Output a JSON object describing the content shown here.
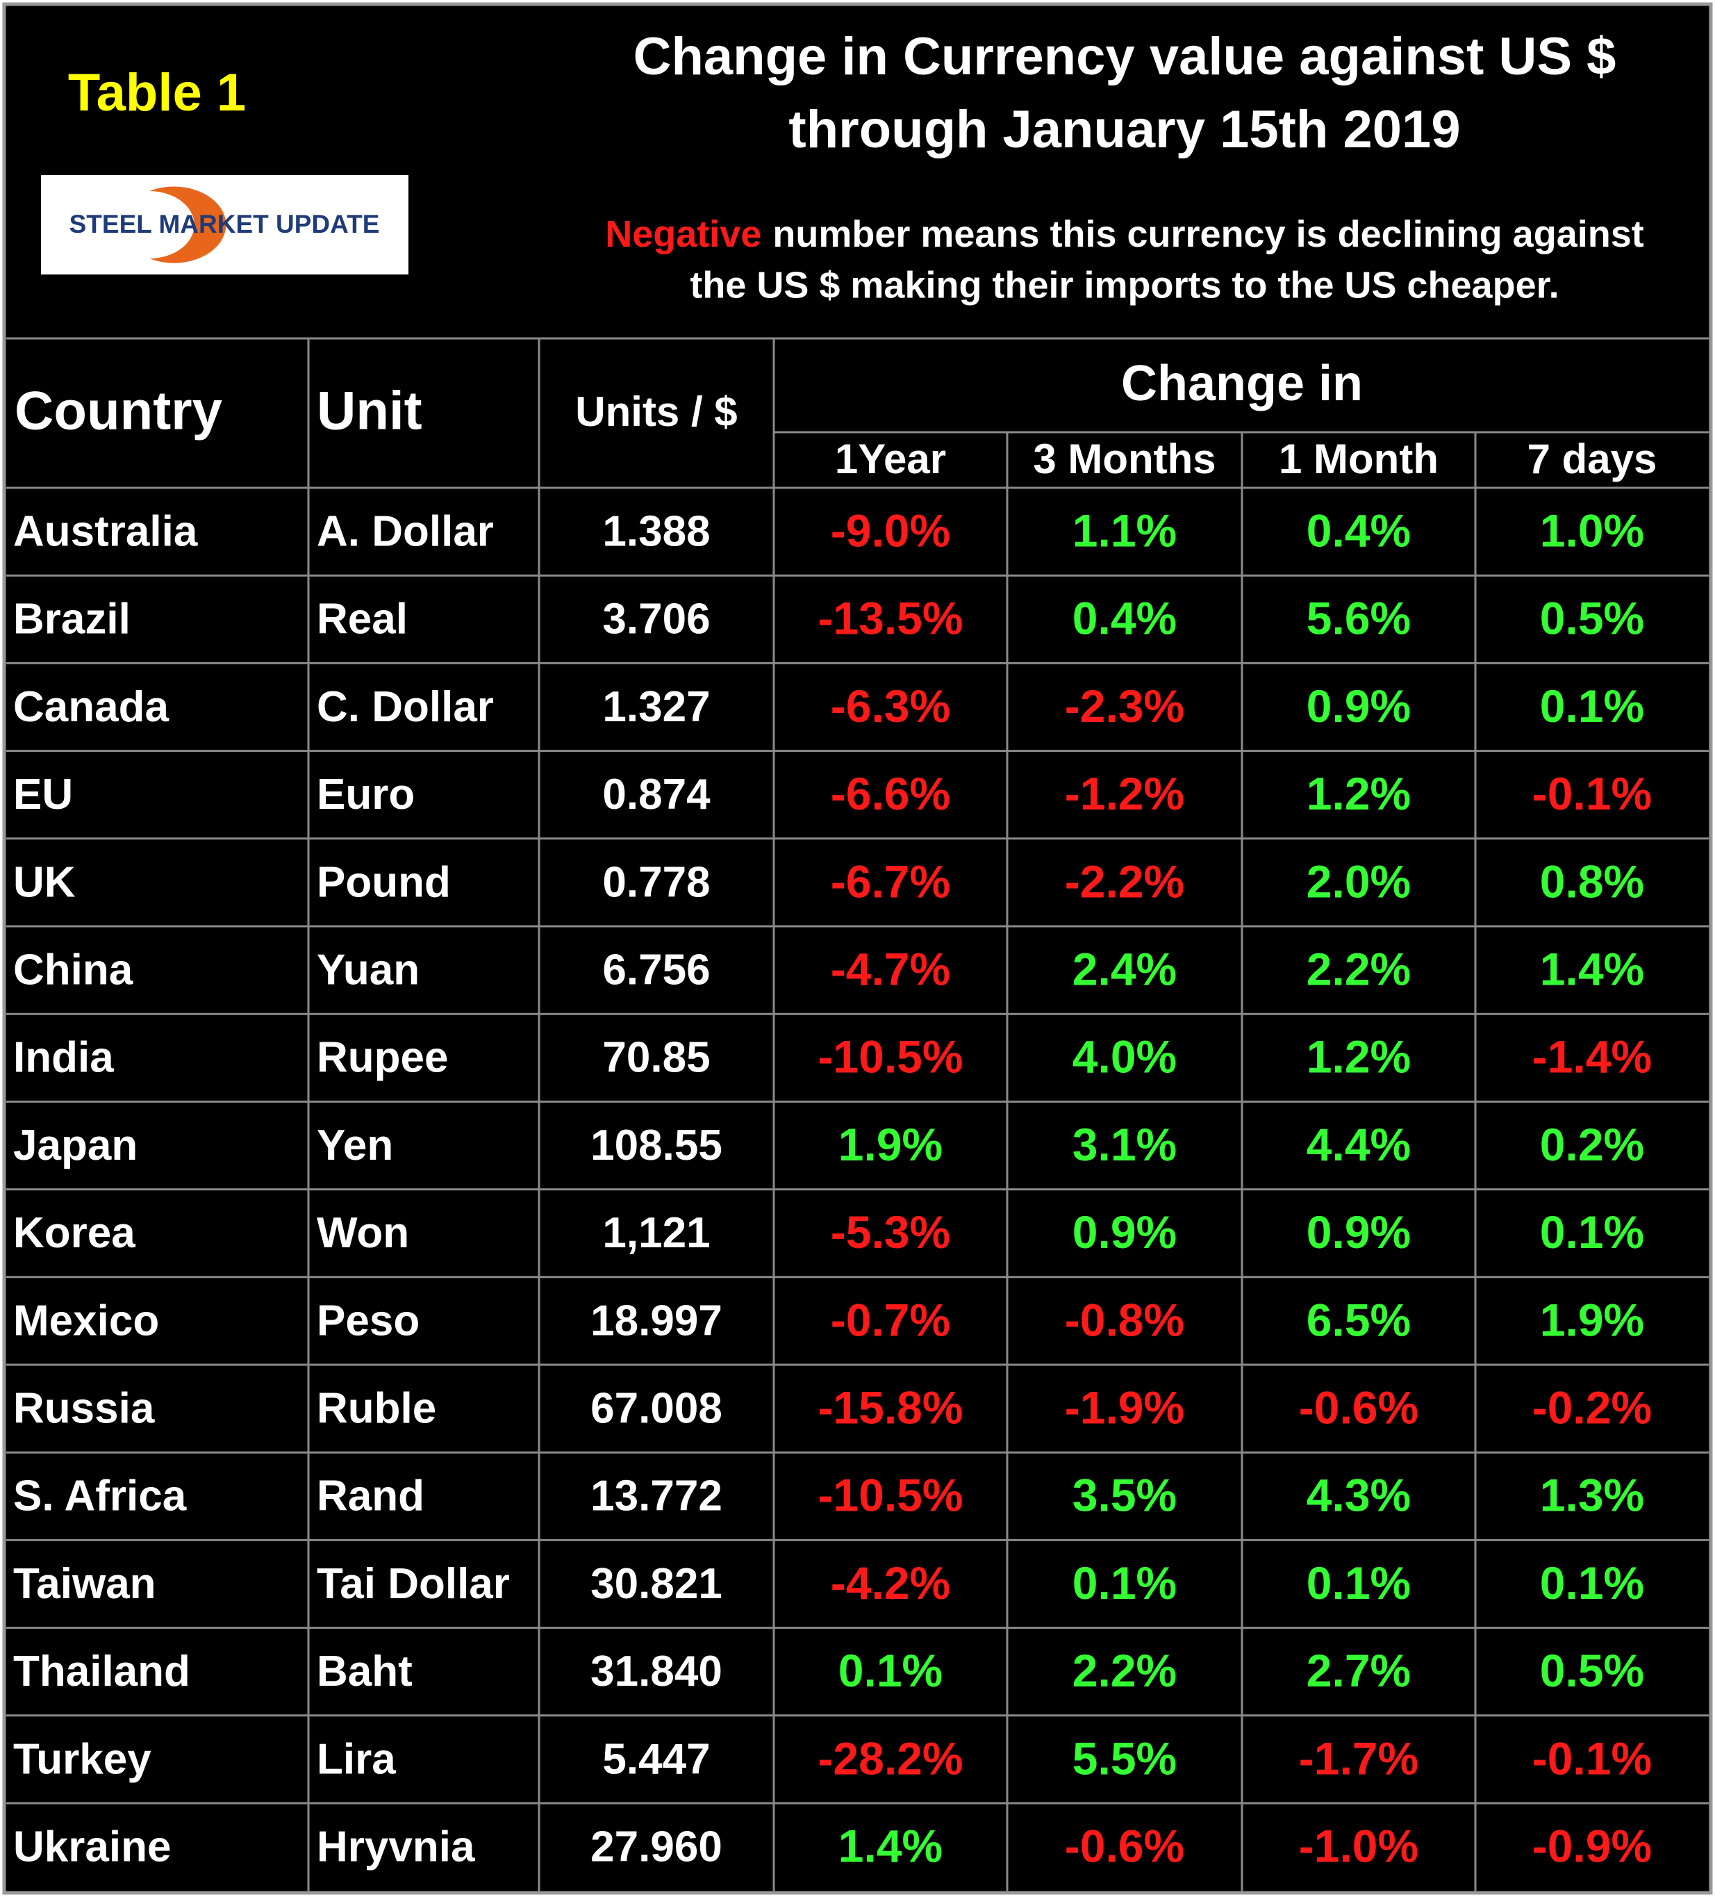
{
  "header": {
    "table_label": "Table 1",
    "logo": "STEEL MARKET UPDATE",
    "title": [
      "Change in Currency value against US $",
      "through January 15th 2019"
    ],
    "note": {
      "highlight": "Negative",
      "line1": "number means this currency is declining against",
      "line2": "the US $ making their imports to the US cheaper."
    }
  },
  "table": {
    "columns": [
      "Country",
      "Unit",
      "Units / $"
    ],
    "group_header": "Change in",
    "subcolumns": [
      "1Year",
      "3 Months",
      "1 Month",
      "7 days"
    ],
    "rows": [
      [
        "Australia",
        "A. Dollar",
        "1.388",
        "-9.0%",
        "1.1%",
        "0.4%",
        "1.0%"
      ],
      [
        "Brazil",
        "Real",
        "3.706",
        "-13.5%",
        "0.4%",
        "5.6%",
        "0.5%"
      ],
      [
        "Canada",
        "C. Dollar",
        "1.327",
        "-6.3%",
        "-2.3%",
        "0.9%",
        "0.1%"
      ],
      [
        "EU",
        "Euro",
        "0.874",
        "-6.6%",
        "-1.2%",
        "1.2%",
        "-0.1%"
      ],
      [
        "UK",
        "Pound",
        "0.778",
        "-6.7%",
        "-2.2%",
        "2.0%",
        "0.8%"
      ],
      [
        "China",
        "Yuan",
        "6.756",
        "-4.7%",
        "2.4%",
        "2.2%",
        "1.4%"
      ],
      [
        "India",
        "Rupee",
        "70.85",
        "-10.5%",
        "4.0%",
        "1.2%",
        "-1.4%"
      ],
      [
        "Japan",
        "Yen",
        "108.55",
        "1.9%",
        "3.1%",
        "4.4%",
        "0.2%"
      ],
      [
        "Korea",
        "Won",
        "1,121",
        "-5.3%",
        "0.9%",
        "0.9%",
        "0.1%"
      ],
      [
        "Mexico",
        "Peso",
        "18.997",
        "-0.7%",
        "-0.8%",
        "6.5%",
        "1.9%"
      ],
      [
        "Russia",
        "Ruble",
        "67.008",
        "-15.8%",
        "-1.9%",
        "-0.6%",
        "-0.2%"
      ],
      [
        "S. Africa",
        "Rand",
        "13.772",
        "-10.5%",
        "3.5%",
        "4.3%",
        "1.3%"
      ],
      [
        "Taiwan",
        "Tai Dollar",
        "30.821",
        "-4.2%",
        "0.1%",
        "0.1%",
        "0.1%"
      ],
      [
        "Thailand",
        "Baht",
        "31.840",
        "0.1%",
        "2.2%",
        "2.7%",
        "0.5%"
      ],
      [
        "Turkey",
        "Lira",
        "5.447",
        "-28.2%",
        "5.5%",
        "-1.7%",
        "-0.1%"
      ],
      [
        "Ukraine",
        "Hryvnia",
        "27.960",
        "1.4%",
        "-0.6%",
        "-1.0%",
        "-0.9%"
      ]
    ]
  }
}
